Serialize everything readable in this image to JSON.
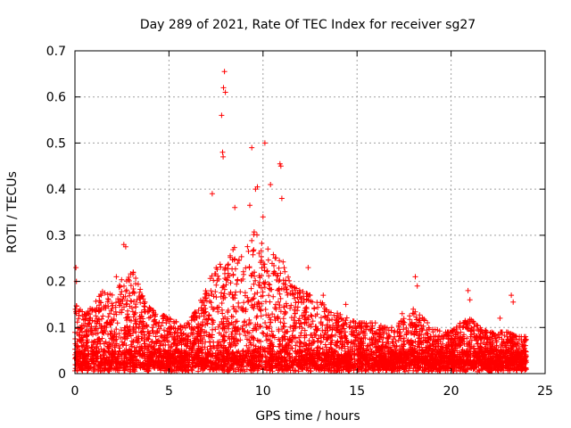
{
  "chart_data": {
    "type": "scatter",
    "title": "Day 289 of 2021, Rate Of TEC Index for receiver sg27",
    "xlabel": "GPS time / hours",
    "ylabel": "ROTI / TECUs",
    "xlim": [
      0,
      25
    ],
    "ylim": [
      0,
      0.7
    ],
    "x_ticks": [
      0,
      5,
      10,
      15,
      20,
      25
    ],
    "x_tick_labels": [
      "0",
      "5",
      "10",
      "15",
      "20",
      "25"
    ],
    "y_ticks": [
      0,
      0.1,
      0.2,
      0.3,
      0.4,
      0.5,
      0.6,
      0.7
    ],
    "y_tick_labels": [
      "0",
      "0.1",
      "0.2",
      "0.3",
      "0.4",
      "0.5",
      "0.6",
      "0.7"
    ],
    "grid": true,
    "marker": "+",
    "series_color": "#ff0000",
    "envelope": {
      "x": [
        0,
        0.5,
        1,
        1.5,
        2,
        2.5,
        3,
        3.5,
        4,
        4.5,
        5,
        5.5,
        6,
        6.5,
        7,
        7.5,
        8,
        8.5,
        9,
        9.5,
        10,
        10.5,
        11,
        11.5,
        12,
        12.5,
        13,
        13.5,
        14,
        14.5,
        15,
        15.5,
        16,
        16.5,
        17,
        17.5,
        18,
        18.5,
        19,
        19.5,
        20,
        20.5,
        21,
        21.5,
        22,
        22.5,
        23,
        23.5,
        24
      ],
      "y": [
        0.14,
        0.12,
        0.14,
        0.17,
        0.16,
        0.2,
        0.22,
        0.17,
        0.13,
        0.12,
        0.11,
        0.1,
        0.1,
        0.13,
        0.18,
        0.24,
        0.22,
        0.27,
        0.25,
        0.3,
        0.28,
        0.26,
        0.24,
        0.18,
        0.17,
        0.16,
        0.15,
        0.13,
        0.12,
        0.11,
        0.1,
        0.1,
        0.1,
        0.09,
        0.09,
        0.11,
        0.13,
        0.11,
        0.09,
        0.08,
        0.08,
        0.1,
        0.11,
        0.09,
        0.08,
        0.08,
        0.08,
        0.07,
        0.07
      ]
    },
    "outliers": [
      {
        "x": 0.05,
        "y": 0.23
      },
      {
        "x": 0.08,
        "y": 0.2
      },
      {
        "x": 2.6,
        "y": 0.28
      },
      {
        "x": 2.7,
        "y": 0.275
      },
      {
        "x": 2.2,
        "y": 0.21
      },
      {
        "x": 3.1,
        "y": 0.22
      },
      {
        "x": 7.3,
        "y": 0.39
      },
      {
        "x": 7.8,
        "y": 0.56
      },
      {
        "x": 7.9,
        "y": 0.62
      },
      {
        "x": 7.95,
        "y": 0.655
      },
      {
        "x": 7.85,
        "y": 0.48
      },
      {
        "x": 7.88,
        "y": 0.47
      },
      {
        "x": 8.0,
        "y": 0.61
      },
      {
        "x": 9.4,
        "y": 0.49
      },
      {
        "x": 10.1,
        "y": 0.5
      },
      {
        "x": 10.9,
        "y": 0.455
      },
      {
        "x": 10.95,
        "y": 0.45
      },
      {
        "x": 9.6,
        "y": 0.4
      },
      {
        "x": 9.7,
        "y": 0.405
      },
      {
        "x": 10.4,
        "y": 0.41
      },
      {
        "x": 8.5,
        "y": 0.36
      },
      {
        "x": 9.3,
        "y": 0.365
      },
      {
        "x": 11.0,
        "y": 0.38
      },
      {
        "x": 10.0,
        "y": 0.34
      },
      {
        "x": 12.4,
        "y": 0.23
      },
      {
        "x": 13.2,
        "y": 0.17
      },
      {
        "x": 14.4,
        "y": 0.15
      },
      {
        "x": 18.1,
        "y": 0.21
      },
      {
        "x": 18.2,
        "y": 0.19
      },
      {
        "x": 20.9,
        "y": 0.18
      },
      {
        "x": 21.0,
        "y": 0.16
      },
      {
        "x": 22.6,
        "y": 0.12
      },
      {
        "x": 23.2,
        "y": 0.17
      },
      {
        "x": 23.3,
        "y": 0.155
      },
      {
        "x": 17.4,
        "y": 0.13
      },
      {
        "x": 16.2,
        "y": 0.1
      }
    ]
  }
}
